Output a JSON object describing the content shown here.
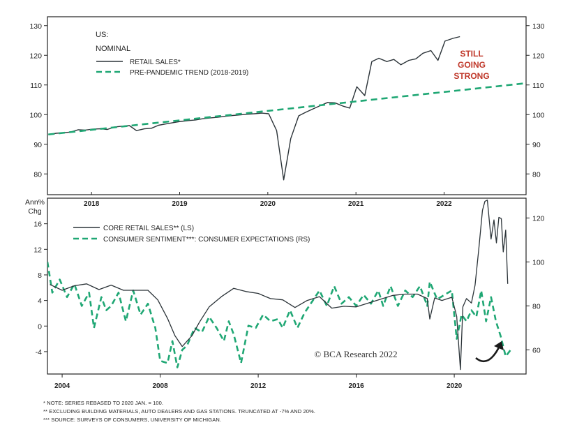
{
  "colors": {
    "actual": "#2b3338",
    "trend": "#1fa774",
    "annotation": "#c0392b",
    "axis": "#222222"
  },
  "chart_data": [
    {
      "type": "line",
      "panel": "top",
      "title_lines": [
        "US:",
        "NOMINAL"
      ],
      "y_left_ticks": [
        "130",
        "120",
        "110",
        "100",
        "90",
        "80"
      ],
      "y_right_ticks": [
        "130",
        "120",
        "110",
        "100",
        "90",
        "80"
      ],
      "x_tick_labels": [
        "2018",
        "2019",
        "2020",
        "2021",
        "2022"
      ],
      "ylim": [
        73,
        133
      ],
      "xlim": [
        2017.5,
        2022.93
      ],
      "grid": false,
      "legend_position": "top-left",
      "annotation_lines": [
        "STILL",
        "GOING",
        "STRONG"
      ],
      "series": [
        {
          "name": "RETAIL SALES*",
          "style": "solid",
          "x": [
            2017.51,
            2017.6,
            2017.68,
            2017.76,
            2017.85,
            2017.93,
            2018.01,
            2018.1,
            2018.18,
            2018.26,
            2018.35,
            2018.43,
            2018.51,
            2018.6,
            2018.68,
            2018.76,
            2018.85,
            2018.93,
            2019.01,
            2019.1,
            2019.18,
            2019.26,
            2019.35,
            2019.43,
            2019.51,
            2019.6,
            2019.68,
            2019.76,
            2019.85,
            2019.93,
            2020.01,
            2020.1,
            2020.18,
            2020.26,
            2020.35,
            2020.43,
            2020.51,
            2020.6,
            2020.68,
            2020.76,
            2020.85,
            2020.93,
            2021.01,
            2021.1,
            2021.18,
            2021.26,
            2021.35,
            2021.43,
            2021.51,
            2021.6,
            2021.68,
            2021.76,
            2021.85,
            2021.93,
            2022.01,
            2022.1,
            2022.18
          ],
          "y": [
            93.2,
            93.7,
            93.9,
            94.1,
            94.9,
            94.8,
            95.1,
            95.2,
            95.0,
            95.8,
            96.1,
            96.3,
            94.6,
            95.2,
            95.4,
            96.4,
            96.9,
            97.3,
            97.7,
            98.0,
            98.2,
            98.6,
            98.9,
            99.1,
            99.4,
            99.7,
            99.9,
            100.1,
            100.3,
            100.5,
            100.3,
            94.6,
            78.0,
            91.9,
            99.6,
            100.8,
            101.9,
            103.1,
            104.1,
            104.0,
            102.9,
            102.2,
            109.4,
            106.4,
            117.9,
            119.0,
            117.9,
            118.6,
            116.8,
            118.3,
            118.8,
            120.7,
            121.6,
            118.3,
            124.8,
            125.7,
            126.3
          ]
        },
        {
          "name": "PRE-PANDEMIC TREND (2018-2019)",
          "style": "dashed",
          "x": [
            2017.51,
            2022.93
          ],
          "y": [
            93.3,
            110.6
          ]
        }
      ]
    },
    {
      "type": "line",
      "panel": "bottom",
      "y_left_title_lines": [
        "Ann%",
        "Chg"
      ],
      "y_left_ticks": [
        "16",
        "12",
        "8",
        "4",
        "0",
        "-4"
      ],
      "y_right_ticks": [
        "120",
        "100",
        "80",
        "60"
      ],
      "x_tick_labels": [
        "2004",
        "2008",
        "2012",
        "2016",
        "2020"
      ],
      "ylim_left": [
        -7.5,
        20
      ],
      "ylim_right": [
        49,
        129
      ],
      "xlim": [
        2003.4,
        2022.93
      ],
      "grid": false,
      "legend_position": "top-left",
      "watermark": "© BCA Research 2022",
      "series": [
        {
          "name": "CORE RETAIL SALES** (LS)",
          "style": "solid",
          "axis": "left",
          "x": [
            2003.5,
            2004.0,
            2004.5,
            2005.0,
            2005.5,
            2006.0,
            2006.5,
            2007.0,
            2007.5,
            2007.9,
            2008.3,
            2008.6,
            2008.9,
            2009.3,
            2009.6,
            2010.0,
            2010.5,
            2011.0,
            2011.5,
            2012.0,
            2012.5,
            2013.0,
            2013.5,
            2014.0,
            2014.5,
            2015.0,
            2015.5,
            2016.0,
            2016.5,
            2017.0,
            2017.5,
            2018.0,
            2018.5,
            2018.9,
            2019.0,
            2019.2,
            2019.5,
            2019.9,
            2020.1,
            2020.25,
            2020.35,
            2020.5,
            2020.7,
            2020.85,
            2021.0,
            2021.15,
            2021.25,
            2021.35,
            2021.5,
            2021.62,
            2021.72,
            2021.82,
            2021.92,
            2022.0,
            2022.1,
            2022.18
          ],
          "y": [
            6.5,
            5.6,
            6.3,
            6.6,
            5.7,
            6.4,
            5.6,
            5.6,
            5.6,
            4.1,
            1.2,
            -1.5,
            -3.2,
            -1.5,
            0.6,
            3.0,
            4.6,
            5.9,
            5.4,
            5.1,
            4.3,
            4.1,
            2.9,
            4.0,
            4.6,
            2.8,
            3.1,
            3.0,
            3.6,
            4.2,
            4.8,
            5.0,
            5.0,
            4.3,
            1.1,
            4.4,
            4.0,
            4.5,
            1.5,
            -6.8,
            3.0,
            4.3,
            3.6,
            6.4,
            12.0,
            18.1,
            19.5,
            19.7,
            13.6,
            16.6,
            13.0,
            17.0,
            16.8,
            11.6,
            15.0,
            6.6
          ]
        },
        {
          "name": "CONSUMER SENTIMENT***: CONSUMER EXPECTATIONS (RS)",
          "style": "dashed",
          "axis": "right",
          "x": [
            2003.4,
            2003.6,
            2003.9,
            2004.2,
            2004.5,
            2004.8,
            2005.1,
            2005.3,
            2005.6,
            2005.8,
            2006.0,
            2006.3,
            2006.6,
            2006.9,
            2007.2,
            2007.5,
            2007.8,
            2008.0,
            2008.3,
            2008.5,
            2008.7,
            2008.9,
            2009.1,
            2009.4,
            2009.7,
            2010.0,
            2010.3,
            2010.6,
            2010.8,
            2011.0,
            2011.3,
            2011.6,
            2011.9,
            2012.2,
            2012.5,
            2012.8,
            2013.0,
            2013.3,
            2013.6,
            2013.9,
            2014.2,
            2014.5,
            2014.8,
            2015.1,
            2015.4,
            2015.7,
            2016.0,
            2016.3,
            2016.6,
            2016.9,
            2017.1,
            2017.4,
            2017.7,
            2018.0,
            2018.3,
            2018.6,
            2018.9,
            2019.0,
            2019.3,
            2019.6,
            2019.9,
            2020.1,
            2020.3,
            2020.5,
            2020.7,
            2020.9,
            2021.1,
            2021.3,
            2021.5,
            2021.7,
            2021.9,
            2022.1,
            2022.3
          ],
          "y": [
            100,
            86,
            92,
            84,
            90,
            80,
            86,
            70,
            84,
            78,
            80,
            86,
            73,
            87,
            76,
            81,
            70,
            55,
            54,
            64,
            52,
            60,
            62,
            70,
            68,
            75,
            70,
            64,
            73,
            67,
            54,
            71,
            70,
            76,
            73,
            74,
            70,
            78,
            70,
            77,
            82,
            87,
            80,
            89,
            81,
            84,
            80,
            85,
            81,
            87,
            80,
            89,
            80,
            87,
            84,
            89,
            80,
            91,
            83,
            85,
            87,
            65,
            76,
            73,
            78,
            75,
            87,
            73,
            84,
            73,
            66,
            57,
            60
          ]
        }
      ]
    }
  ],
  "notes": [
    "*   NOTE: SERIES REBASED TO 2020 JAN. = 100.",
    "**  EXCLUDING BUILDING MATERIALS, AUTO DEALERS AND GAS STATIONS. TRUNCATED AT -7% AND 20%.",
    "*** SOURCE: SURVEYS OF CONSUMERS, UNIVERSITY OF MICHIGAN."
  ]
}
